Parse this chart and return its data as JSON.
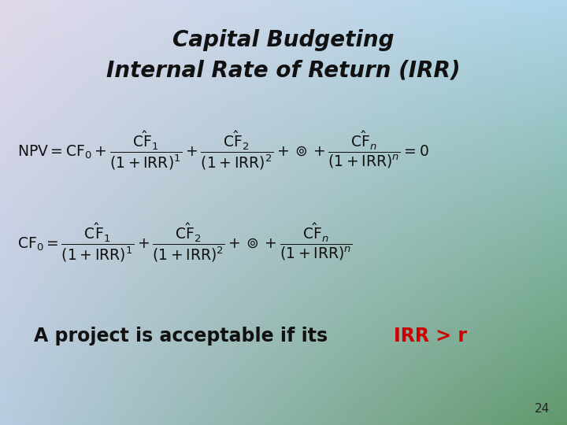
{
  "title_line1": "Capital Budgeting",
  "title_line2": "Internal Rate of Return (IRR)",
  "title_fontsize": 20,
  "title_color": "#111111",
  "formula_color": "#111111",
  "formula_highlight_color": "#cc0000",
  "accent_text": "A project is acceptable if its ",
  "accent_highlight": "IRR > r",
  "page_number": "24",
  "formula_fontsize": 13.5,
  "accent_fontsize": 17,
  "bg_topleft": [
    0.88,
    0.85,
    0.92
  ],
  "bg_topright": [
    0.68,
    0.84,
    0.92
  ],
  "bg_bottomleft": [
    0.72,
    0.8,
    0.88
  ],
  "bg_bottomright": [
    0.38,
    0.6,
    0.42
  ]
}
